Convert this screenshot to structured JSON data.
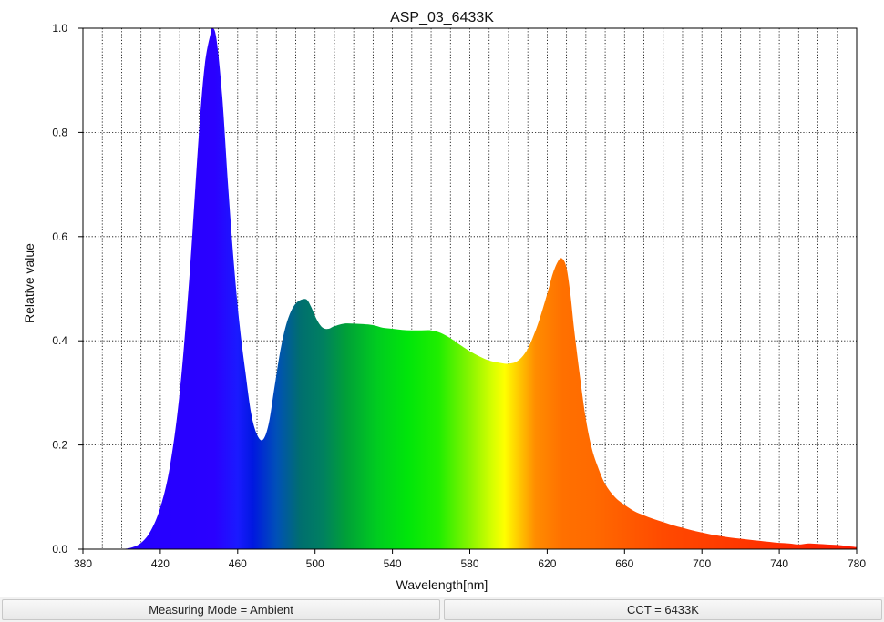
{
  "chart_data": {
    "type": "area",
    "title": "ASP_03_6433K",
    "xlabel": "Wavelength[nm]",
    "ylabel": "Relative value",
    "xlim": [
      380,
      780
    ],
    "ylim": [
      0,
      1.0
    ],
    "xticks": [
      380,
      420,
      460,
      500,
      540,
      580,
      620,
      660,
      700,
      740,
      780
    ],
    "yticks": [
      0.0,
      0.2,
      0.4,
      0.6,
      0.8,
      1.0
    ],
    "ytick_labels": [
      "0.0",
      "0.2",
      "0.4",
      "0.6",
      "0.8",
      "1.0"
    ],
    "x_minor_grid_step": 10,
    "grid": "dotted",
    "fill": "spectral color gradient under curve",
    "x": [
      400,
      405,
      410,
      415,
      420,
      425,
      430,
      435,
      440,
      443,
      446,
      447,
      449,
      452,
      455,
      458,
      461,
      464,
      467,
      470,
      473,
      476,
      479,
      482,
      485,
      488,
      491,
      494,
      496,
      498,
      501,
      504,
      507,
      510,
      515,
      520,
      525,
      530,
      535,
      540,
      545,
      550,
      555,
      560,
      565,
      570,
      575,
      580,
      585,
      590,
      595,
      600,
      605,
      610,
      615,
      620,
      623,
      626,
      628,
      630,
      632,
      634,
      637,
      640,
      643,
      646,
      650,
      655,
      660,
      665,
      670,
      675,
      680,
      685,
      690,
      695,
      700,
      705,
      710,
      715,
      720,
      725,
      730,
      735,
      740,
      745,
      750,
      755,
      760,
      765,
      770,
      775,
      780
    ],
    "y": [
      0.0,
      0.003,
      0.012,
      0.035,
      0.08,
      0.16,
      0.3,
      0.52,
      0.8,
      0.93,
      0.99,
      1.0,
      0.98,
      0.87,
      0.7,
      0.55,
      0.43,
      0.34,
      0.26,
      0.22,
      0.21,
      0.24,
      0.31,
      0.38,
      0.43,
      0.46,
      0.475,
      0.48,
      0.478,
      0.465,
      0.44,
      0.425,
      0.423,
      0.428,
      0.433,
      0.433,
      0.432,
      0.43,
      0.425,
      0.423,
      0.421,
      0.42,
      0.42,
      0.42,
      0.415,
      0.405,
      0.392,
      0.38,
      0.37,
      0.362,
      0.358,
      0.356,
      0.362,
      0.385,
      0.43,
      0.49,
      0.53,
      0.555,
      0.557,
      0.54,
      0.49,
      0.42,
      0.33,
      0.25,
      0.195,
      0.16,
      0.125,
      0.1,
      0.085,
      0.073,
      0.065,
      0.058,
      0.052,
      0.046,
      0.041,
      0.036,
      0.032,
      0.028,
      0.025,
      0.022,
      0.02,
      0.018,
      0.016,
      0.014,
      0.012,
      0.011,
      0.009,
      0.011,
      0.01,
      0.009,
      0.008,
      0.006,
      0.004
    ]
  },
  "status_bar": {
    "left": "Measuring Mode = Ambient",
    "right": "CCT = 6433K"
  },
  "colors": {
    "grid": "#000000",
    "axis": "#000000",
    "status_bg": "#ececec"
  }
}
